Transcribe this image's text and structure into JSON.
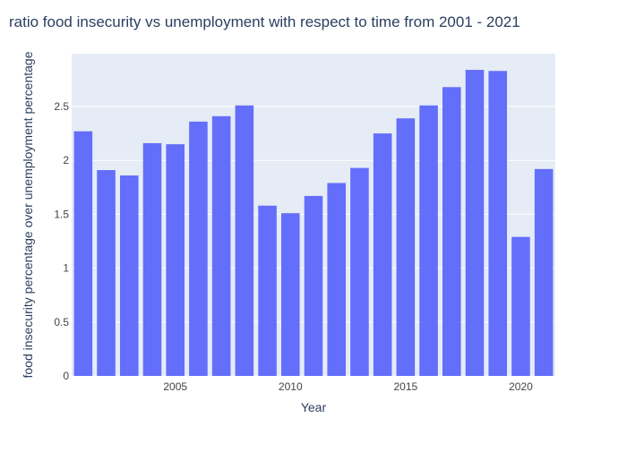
{
  "chart_data": {
    "type": "bar",
    "title": "ratio food insecurity vs unemployment with respect to time from 2001 - 2021",
    "xlabel": "Year",
    "ylabel": "food insecurity percentage over unemployment percentage",
    "x": [
      2001,
      2002,
      2003,
      2004,
      2005,
      2006,
      2007,
      2008,
      2009,
      2010,
      2011,
      2012,
      2013,
      2014,
      2015,
      2016,
      2017,
      2018,
      2019,
      2020,
      2021
    ],
    "values": [
      2.27,
      1.91,
      1.86,
      2.16,
      2.15,
      2.36,
      2.41,
      2.51,
      1.58,
      1.51,
      1.67,
      1.79,
      1.93,
      2.25,
      2.39,
      2.51,
      2.68,
      2.84,
      2.83,
      1.29,
      1.92
    ],
    "xlim": [
      2000.5,
      2021.5
    ],
    "ylim": [
      0,
      2.99
    ],
    "x_ticks": [
      {
        "value": 2005,
        "label": "2005"
      },
      {
        "value": 2010,
        "label": "2010"
      },
      {
        "value": 2015,
        "label": "2015"
      },
      {
        "value": 2020,
        "label": "2020"
      }
    ],
    "y_ticks": [
      {
        "value": 0,
        "label": "0"
      },
      {
        "value": 0.5,
        "label": "0.5"
      },
      {
        "value": 1,
        "label": "1"
      },
      {
        "value": 1.5,
        "label": "1.5"
      },
      {
        "value": 2,
        "label": "2"
      },
      {
        "value": 2.5,
        "label": "2.5"
      }
    ],
    "grid": true,
    "legend": "none",
    "colors": {
      "bar": "#636efa",
      "plot_background": "#e5ecf6",
      "grid": "#ffffff",
      "text": "#2a3f5f",
      "tick_text": "#444444"
    }
  }
}
